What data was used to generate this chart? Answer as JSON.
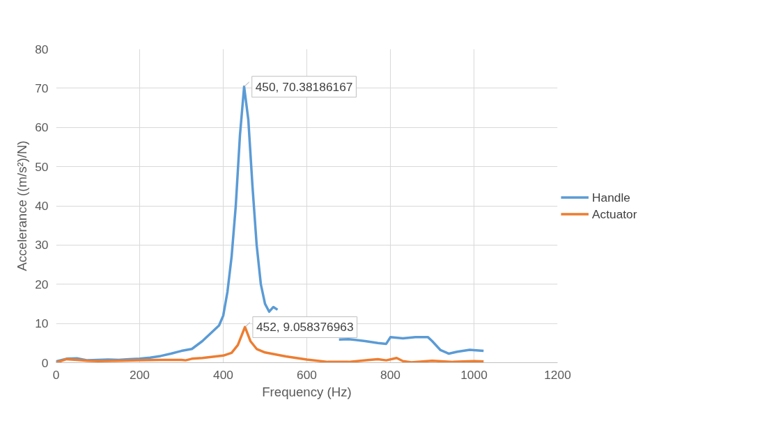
{
  "chart_data": {
    "type": "line",
    "xlabel": "Frequency (Hz)",
    "ylabel": "Accelerance ((m/s²)/N)",
    "xlim": [
      0,
      1200
    ],
    "xticks": [
      0,
      200,
      400,
      600,
      800,
      1000,
      1200
    ],
    "ylim": [
      0,
      80
    ],
    "yticks": [
      0,
      10,
      20,
      30,
      40,
      50,
      60,
      70,
      80
    ],
    "grid": true,
    "legend": "right",
    "marker": "none",
    "line_style": "solid",
    "series": [
      {
        "name": "Handle",
        "color": "#5b9bd5",
        "x": [
          0,
          25,
          50,
          75,
          100,
          125,
          150,
          175,
          200,
          225,
          250,
          275,
          300,
          325,
          350,
          370,
          390,
          400,
          410,
          420,
          430,
          440,
          450,
          460,
          470,
          480,
          490,
          500,
          510,
          520,
          530,
          540,
          560,
          600,
          640,
          677,
          700,
          740,
          770,
          790,
          800,
          830,
          860,
          890,
          900,
          920,
          940,
          960,
          990,
          1000,
          1023
        ],
        "values": [
          0.3,
          1.0,
          1.1,
          0.6,
          0.7,
          0.8,
          0.7,
          0.9,
          1.0,
          1.3,
          1.7,
          2.3,
          3.0,
          3.5,
          5.5,
          7.5,
          9.5,
          12,
          18,
          27,
          40,
          58,
          70.4,
          62,
          45,
          30,
          20,
          15,
          13,
          14.2,
          13.5,
          null,
          null,
          null,
          null,
          5.9,
          6.0,
          5.5,
          5.0,
          4.8,
          6.5,
          6.2,
          6.5,
          6.5,
          5.5,
          3.2,
          2.3,
          2.8,
          3.3,
          3.2,
          3.0
        ]
      },
      {
        "name": "Actuator",
        "color": "#ed7d31",
        "x": [
          0,
          25,
          50,
          75,
          100,
          150,
          200,
          250,
          300,
          310,
          325,
          350,
          375,
          400,
          420,
          435,
          452,
          465,
          480,
          500,
          550,
          600,
          650,
          700,
          750,
          770,
          790,
          815,
          830,
          850,
          900,
          950,
          1000,
          1023
        ],
        "values": [
          0,
          0.9,
          0.7,
          0.5,
          0.4,
          0.5,
          0.6,
          0.7,
          0.7,
          0.6,
          1.0,
          1.2,
          1.5,
          1.8,
          2.5,
          4.5,
          9.1,
          5.5,
          3.5,
          2.6,
          1.6,
          0.8,
          0.2,
          0.2,
          0.7,
          0.9,
          0.6,
          1.2,
          0.4,
          0.1,
          0.5,
          0.2,
          0.4,
          0.3
        ]
      }
    ],
    "annotations": [
      {
        "text": "450, 70.38186167",
        "x": 450,
        "y": 70.38
      },
      {
        "text": "452, 9.058376963",
        "x": 452,
        "y": 9.058
      }
    ]
  }
}
